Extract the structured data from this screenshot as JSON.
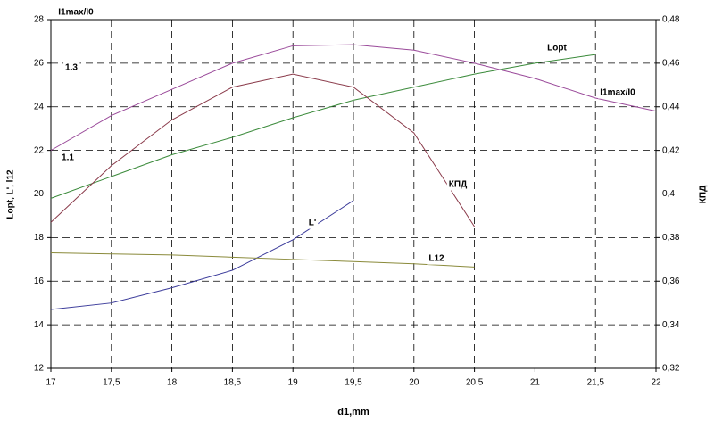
{
  "chart_data": {
    "type": "line",
    "x_label": "d1,mm",
    "y_label": "Lopt, L', l12",
    "y2_label": "КПД",
    "annotations": [
      "I1max/I0",
      "1.3",
      "1.1"
    ],
    "x": [
      17,
      17.5,
      18,
      18.5,
      19,
      19.5,
      20,
      20.5,
      21,
      21.5,
      22
    ],
    "xlim": [
      17,
      22
    ],
    "xticks": [
      17,
      {
        "value": 17.5,
        "label": "17,5"
      },
      18,
      {
        "value": 18.5,
        "label": "18,5"
      },
      19,
      {
        "value": 19.5,
        "label": "19,5"
      },
      20,
      {
        "value": 20.5,
        "label": "20,5"
      },
      21,
      {
        "value": 21.5,
        "label": "21,5"
      },
      22
    ],
    "ylim": [
      12,
      28
    ],
    "yticks": [
      12,
      14,
      16,
      18,
      20,
      22,
      24,
      26,
      28
    ],
    "y2lim": [
      0.32,
      0.48
    ],
    "y2ticks": [
      {
        "value": 0.32,
        "label": "0,32"
      },
      {
        "value": 0.34,
        "label": "0,34"
      },
      {
        "value": 0.36,
        "label": "0,36"
      },
      {
        "value": 0.38,
        "label": "0,38"
      },
      {
        "value": 0.4,
        "label": "0,4"
      },
      {
        "value": 0.42,
        "label": "0,42"
      },
      {
        "value": 0.44,
        "label": "0,44"
      },
      {
        "value": 0.46,
        "label": "0,46"
      },
      {
        "value": 0.48,
        "label": "0,48"
      }
    ],
    "grid": true,
    "series": [
      {
        "name": "Lopt",
        "color": "#3a8a3a",
        "values": [
          19.8,
          20.8,
          21.8,
          22.6,
          23.5,
          24.3,
          24.9,
          25.5,
          26.0,
          26.4,
          null
        ]
      },
      {
        "name": "L'",
        "color": "#3a3a9a",
        "values": [
          14.7,
          15.0,
          15.7,
          16.5,
          17.9,
          19.7,
          null,
          null,
          null,
          null,
          null
        ]
      },
      {
        "name": "L12",
        "color": "#8a8a3a",
        "values": [
          17.3,
          17.25,
          17.2,
          17.1,
          17.0,
          16.9,
          16.8,
          16.65,
          null,
          null,
          null
        ]
      },
      {
        "name": "КПД",
        "color": "#8a3a4a",
        "axis": "y2",
        "values": [
          0.387,
          0.413,
          0.434,
          0.449,
          0.455,
          0.449,
          0.428,
          0.385,
          null,
          null,
          null
        ]
      },
      {
        "name": "I1max/I0",
        "color": "#9a4a9a",
        "values": [
          22.0,
          23.6,
          24.8,
          26.0,
          26.8,
          26.85,
          26.6,
          26.0,
          25.3,
          24.4,
          23.8
        ]
      }
    ]
  }
}
